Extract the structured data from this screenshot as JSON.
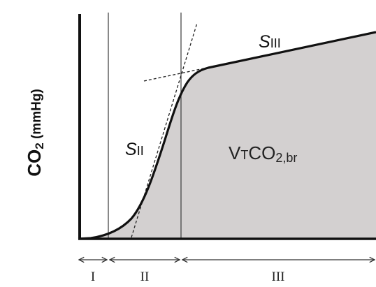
{
  "y_axis": {
    "label_main": "CO",
    "label_sub": "2",
    "label_units": " (mmHg)"
  },
  "slopes": {
    "s2_letter": "S",
    "s2_sub": "II",
    "s3_letter": "S",
    "s3_sub": "III"
  },
  "area": {
    "label_v": "V",
    "label_t": "T",
    "label_co": "CO",
    "label_sub": "2,br"
  },
  "phases": [
    {
      "label": "I"
    },
    {
      "label": "II"
    },
    {
      "label": "III"
    }
  ],
  "colors": {
    "area_fill": "#d3d0d0",
    "curve": "#111111",
    "divider": "#3a3a3a"
  }
}
